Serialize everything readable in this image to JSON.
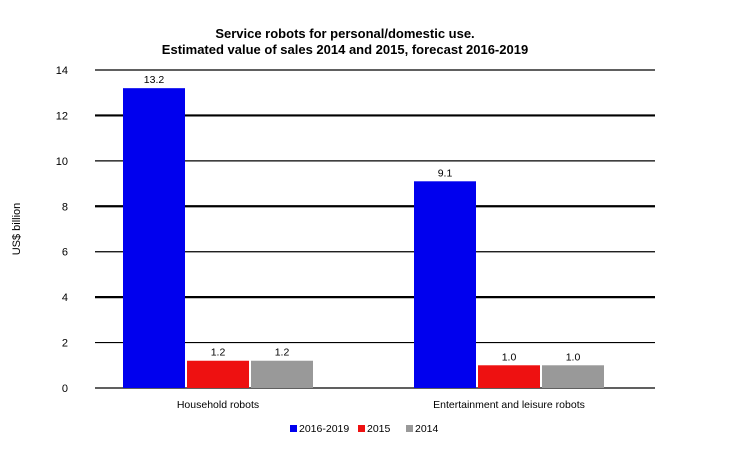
{
  "chart_data": {
    "type": "bar",
    "title": "Service robots for personal/domestic use.",
    "subtitle": "Estimated value of sales 2014 and 2015, forecast 2016-2019",
    "ylabel": "US$ billion",
    "xlabel": "",
    "ylim": [
      0,
      14
    ],
    "yticks": [
      0,
      2,
      4,
      6,
      8,
      10,
      12,
      14
    ],
    "grid": true,
    "legend_position": "bottom",
    "categories": [
      "Household robots",
      "Entertainment and leisure robots"
    ],
    "series": [
      {
        "name": "2016-2019",
        "color": "#0000ee",
        "values": [
          13.2,
          9.1
        ],
        "labels": [
          "13.2",
          "9.1"
        ]
      },
      {
        "name": "2015",
        "color": "#ee1111",
        "values": [
          1.2,
          1.0
        ],
        "labels": [
          "1.2",
          "1.0"
        ]
      },
      {
        "name": "2014",
        "color": "#999999",
        "values": [
          1.2,
          1.0
        ],
        "labels": [
          "1.2",
          "1.0"
        ]
      }
    ]
  }
}
